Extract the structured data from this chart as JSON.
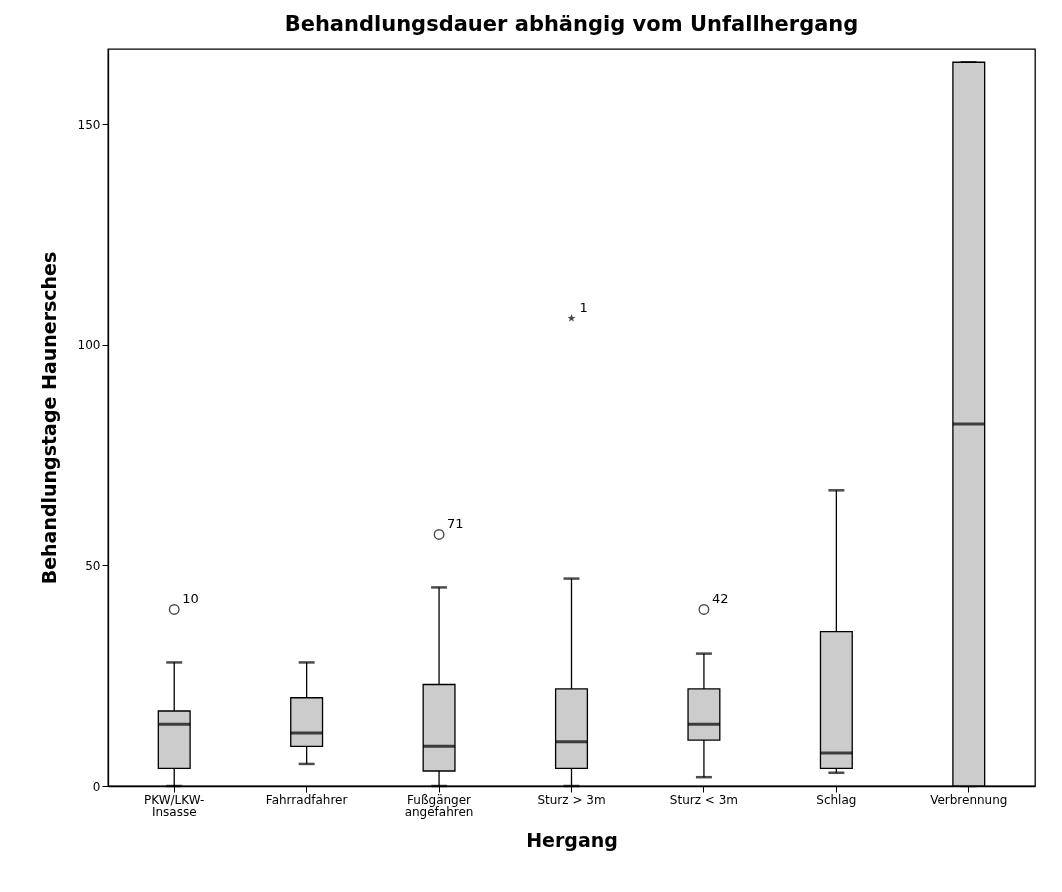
{
  "chart_data": {
    "type": "box",
    "title": "Behandlungsdauer abhängig vom Unfallhergang",
    "xlabel": "Hergang",
    "ylabel": "Behandlungstage Haunersches",
    "categories": [
      "PKW/LKW-\nInsasse",
      "Fahrradfahrer",
      "Fußgänger\nangefahren",
      "Sturz > 3m",
      "Sturz < 3m",
      "Schlag",
      "Verbrennung"
    ],
    "ylim": [
      0,
      167
    ],
    "yticks": [
      0,
      50,
      100,
      150
    ],
    "grid": false,
    "series": [
      {
        "color": "#cccccc",
        "boxes": [
          {
            "low": 0,
            "q1": 4,
            "median": 14,
            "q3": 17,
            "high": 28,
            "outliers": [
              40
            ]
          },
          {
            "low": 5,
            "q1": 9,
            "median": 12,
            "q3": 20,
            "high": 28
          },
          {
            "low": 0,
            "q1": 3.4,
            "median": 9,
            "q3": 23,
            "high": 45,
            "outliers": [
              57
            ]
          },
          {
            "low": 0,
            "q1": 4,
            "median": 10,
            "q3": 22,
            "high": 47
          },
          {
            "low": 2,
            "q1": 10.4,
            "median": 14,
            "q3": 22,
            "high": 30,
            "outliers": [
              40
            ]
          },
          {
            "low": 3,
            "q1": 4,
            "median": 7.5,
            "q3": 35,
            "high": 67
          },
          {
            "low": 0,
            "q1": 0,
            "median": 82,
            "q3": 164,
            "high": 164
          }
        ]
      },
      {
        "type": "scatter",
        "marker": "star",
        "color": "#000000",
        "x": [
          "Sturz > 3m"
        ],
        "values": [
          106
        ]
      }
    ],
    "annotations": [
      "10",
      "71",
      {
        "text": "1",
        "x": "Sturz > 3m",
        "y": 106
      },
      "42"
    ]
  }
}
